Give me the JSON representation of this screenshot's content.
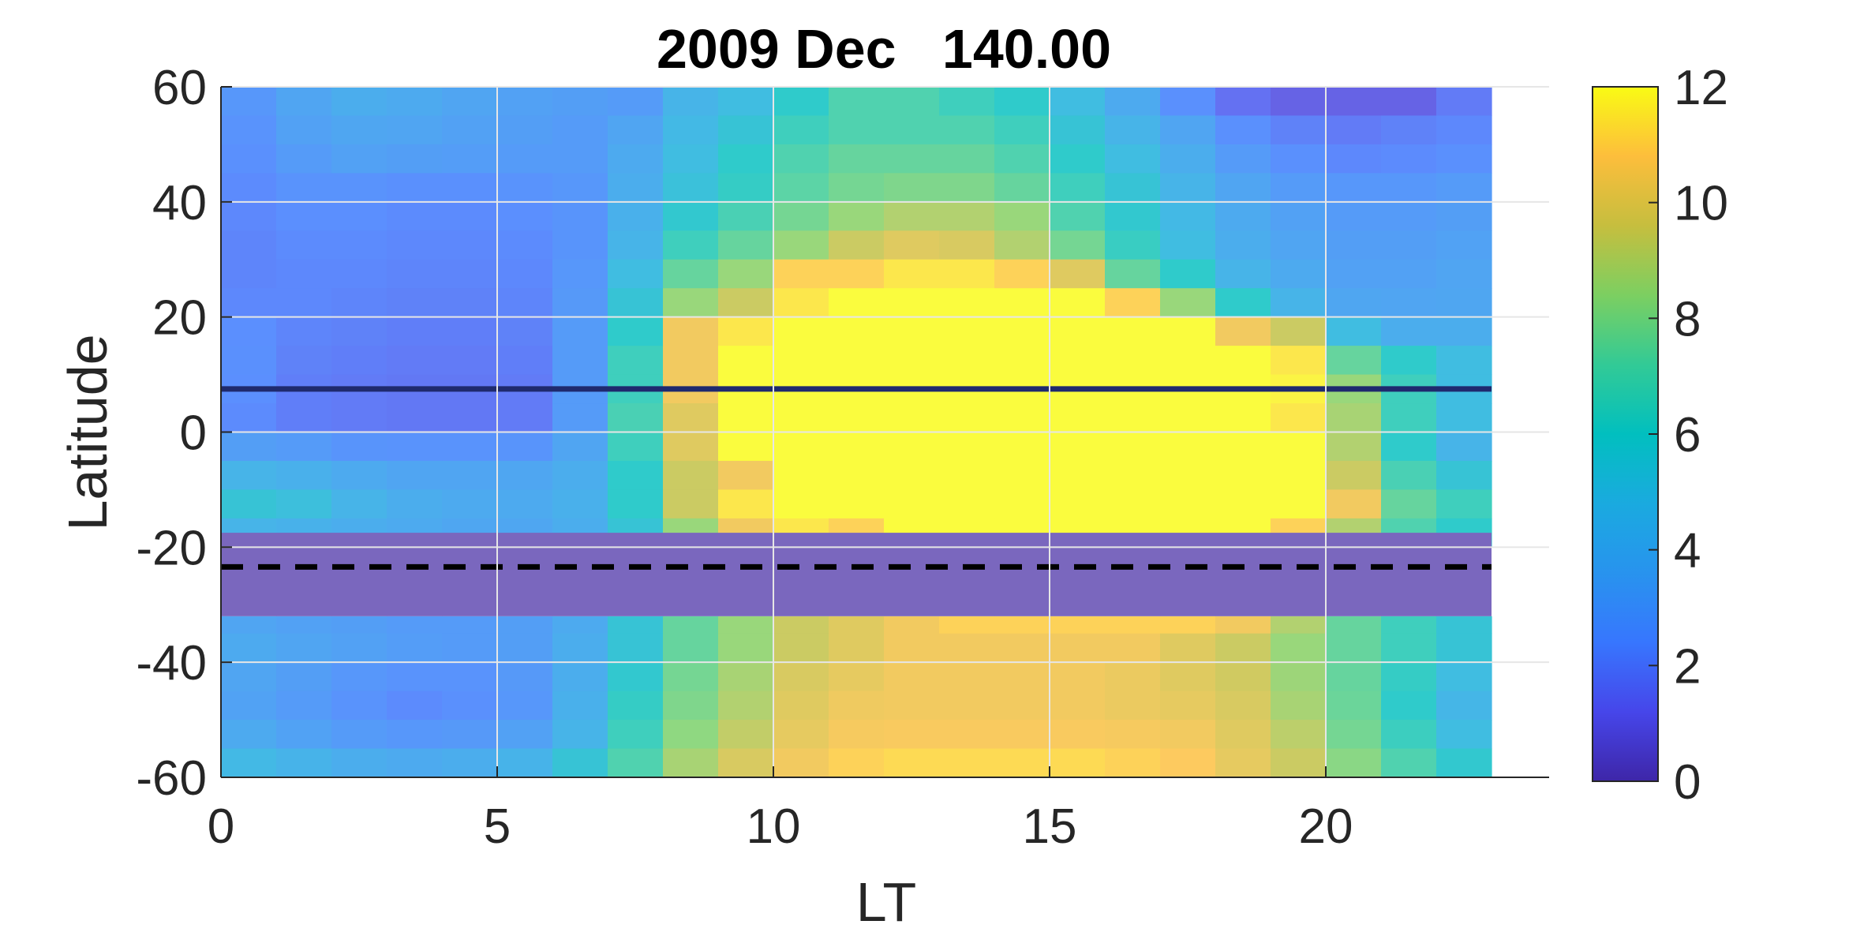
{
  "chart_data": {
    "type": "heatmap",
    "title": "2009 Dec   140.00",
    "xlabel": "LT",
    "ylabel": "Latitude",
    "xlim": [
      0,
      24
    ],
    "ylim": [
      -60,
      60
    ],
    "x_ticks": [
      "0",
      "5",
      "10",
      "15",
      "20"
    ],
    "y_ticks": [
      "-60",
      "-40",
      "-20",
      "0",
      "20",
      "40",
      "60"
    ],
    "colorbar": {
      "range": [
        0,
        12
      ],
      "ticks": [
        "0",
        "2",
        "4",
        "6",
        "8",
        "10",
        "12"
      ],
      "colormap": "parula"
    },
    "grid": true,
    "x_centers": [
      0.5,
      1.5,
      2.5,
      3.5,
      4.5,
      5.5,
      6.5,
      7.5,
      8.5,
      9.5,
      10.5,
      11.5,
      12.5,
      13.5,
      14.5,
      15.5,
      16.5,
      17.5,
      18.5,
      19.5,
      20.5,
      21.5,
      22.5
    ],
    "lat_bins": [
      [
        55,
        60
      ],
      [
        50,
        55
      ],
      [
        45,
        50
      ],
      [
        40,
        45
      ],
      [
        35,
        40
      ],
      [
        30,
        35
      ],
      [
        25,
        30
      ],
      [
        20,
        25
      ],
      [
        15,
        20
      ],
      [
        10,
        15
      ],
      [
        5,
        10
      ],
      [
        0,
        5
      ],
      [
        -5,
        0
      ],
      [
        -10,
        -5
      ],
      [
        -15,
        -10
      ],
      [
        -20,
        -15
      ],
      [
        -35,
        -32
      ],
      [
        -40,
        -35
      ],
      [
        -45,
        -40
      ],
      [
        -50,
        -45
      ],
      [
        -55,
        -50
      ],
      [
        -60,
        -55
      ]
    ],
    "values": [
      [
        2.8,
        3.5,
        4.0,
        3.8,
        3.5,
        3.3,
        3.2,
        3.0,
        4.5,
        5.0,
        6.0,
        7.0,
        7.0,
        6.5,
        6.0,
        5.0,
        3.8,
        2.5,
        1.5,
        1.0,
        1.0,
        1.0,
        1.8
      ],
      [
        2.6,
        3.3,
        3.6,
        3.5,
        3.3,
        3.2,
        3.0,
        3.5,
        4.8,
        5.5,
        6.5,
        7.0,
        7.0,
        7.0,
        6.5,
        5.5,
        4.5,
        3.5,
        2.5,
        2.0,
        1.8,
        2.0,
        2.2
      ],
      [
        2.5,
        3.0,
        3.3,
        3.2,
        3.1,
        3.0,
        3.0,
        3.8,
        5.0,
        6.0,
        7.0,
        7.5,
        7.5,
        7.5,
        7.0,
        6.0,
        5.0,
        4.0,
        3.0,
        2.5,
        2.2,
        2.3,
        2.5
      ],
      [
        2.3,
        2.6,
        2.6,
        2.5,
        2.5,
        2.6,
        2.8,
        4.0,
        5.3,
        6.2,
        7.3,
        7.8,
        8.0,
        8.0,
        7.5,
        6.5,
        5.5,
        4.5,
        3.5,
        3.0,
        2.8,
        2.8,
        3.0
      ],
      [
        2.2,
        2.4,
        2.4,
        2.3,
        2.3,
        2.4,
        2.7,
        4.2,
        5.8,
        6.8,
        7.8,
        8.5,
        9.0,
        9.0,
        8.5,
        7.0,
        5.8,
        4.8,
        3.8,
        3.3,
        3.0,
        3.0,
        3.2
      ],
      [
        2.1,
        2.3,
        2.3,
        2.2,
        2.2,
        2.3,
        2.7,
        4.5,
        6.5,
        7.5,
        8.5,
        9.5,
        10.0,
        9.8,
        9.0,
        7.8,
        6.3,
        5.0,
        4.0,
        3.5,
        3.2,
        3.2,
        3.4
      ],
      [
        2.1,
        2.2,
        2.2,
        2.1,
        2.1,
        2.2,
        2.8,
        5.0,
        7.5,
        8.5,
        11.0,
        11.0,
        11.5,
        11.5,
        11.0,
        10.0,
        7.5,
        6.0,
        4.5,
        3.8,
        3.3,
        3.3,
        3.5
      ],
      [
        2.2,
        2.2,
        2.1,
        2.0,
        2.0,
        2.1,
        2.9,
        5.5,
        8.5,
        9.5,
        11.5,
        12.0,
        12.0,
        12.0,
        12.0,
        12.0,
        11.0,
        8.5,
        6.0,
        4.5,
        3.6,
        3.5,
        3.6
      ],
      [
        2.4,
        2.1,
        2.0,
        1.9,
        1.9,
        2.0,
        3.0,
        6.0,
        10.5,
        11.5,
        12.0,
        12.0,
        12.0,
        12.0,
        12.0,
        12.0,
        12.0,
        12.0,
        10.5,
        9.5,
        5.0,
        4.0,
        4.0
      ],
      [
        2.5,
        2.0,
        1.9,
        1.8,
        1.8,
        1.9,
        3.0,
        6.5,
        10.5,
        12.0,
        12.0,
        12.0,
        12.0,
        12.0,
        12.0,
        12.0,
        12.0,
        12.0,
        12.0,
        11.5,
        7.5,
        6.0,
        5.0
      ],
      [
        2.4,
        1.9,
        1.8,
        1.7,
        1.7,
        1.8,
        3.0,
        6.5,
        10.5,
        12.0,
        12.0,
        12.0,
        12.0,
        12.0,
        12.0,
        12.0,
        12.0,
        12.0,
        12.0,
        11.8,
        8.5,
        6.5,
        5.0
      ],
      [
        2.3,
        1.9,
        1.8,
        1.7,
        1.7,
        1.8,
        3.0,
        6.8,
        10.0,
        12.0,
        12.0,
        12.0,
        12.0,
        12.0,
        12.0,
        12.0,
        12.0,
        12.0,
        12.0,
        11.5,
        8.8,
        6.5,
        5.0
      ],
      [
        3.2,
        3.0,
        2.7,
        2.6,
        2.6,
        2.7,
        3.5,
        6.5,
        10.0,
        12.0,
        12.0,
        12.0,
        12.0,
        12.0,
        12.0,
        12.0,
        12.0,
        12.0,
        12.0,
        12.0,
        9.0,
        6.0,
        4.5
      ],
      [
        4.5,
        4.2,
        3.8,
        3.5,
        3.5,
        3.6,
        4.0,
        6.0,
        9.5,
        10.5,
        12.0,
        12.0,
        12.0,
        12.0,
        12.0,
        12.0,
        12.0,
        12.0,
        12.0,
        12.0,
        9.5,
        6.8,
        5.5
      ],
      [
        5.5,
        5.2,
        4.5,
        4.0,
        3.8,
        3.8,
        4.2,
        6.0,
        9.5,
        11.5,
        12.0,
        12.0,
        12.0,
        12.0,
        12.0,
        12.0,
        12.0,
        12.0,
        12.0,
        12.0,
        10.5,
        7.5,
        6.5
      ],
      [
        4.5,
        4.3,
        4.0,
        3.8,
        3.6,
        3.6,
        4.0,
        5.5,
        8.5,
        10.5,
        11.5,
        11.0,
        12.0,
        12.0,
        12.0,
        12.0,
        12.0,
        12.0,
        12.0,
        11.0,
        9.0,
        7.0,
        6.0
      ],
      [
        3.5,
        3.3,
        3.2,
        3.0,
        3.0,
        3.2,
        3.8,
        5.5,
        7.5,
        8.5,
        9.5,
        10.0,
        10.5,
        11.0,
        11.0,
        11.0,
        11.0,
        11.0,
        10.5,
        9.0,
        7.5,
        6.5,
        5.5
      ],
      [
        3.8,
        3.5,
        3.3,
        3.1,
        3.0,
        3.2,
        4.0,
        5.5,
        7.5,
        8.5,
        9.5,
        10.0,
        10.5,
        10.5,
        10.5,
        10.5,
        10.5,
        10.0,
        9.5,
        8.5,
        7.5,
        6.5,
        5.5
      ],
      [
        3.5,
        3.2,
        2.8,
        2.6,
        2.6,
        2.9,
        4.0,
        5.8,
        7.8,
        8.8,
        9.8,
        10.2,
        10.5,
        10.5,
        10.5,
        10.5,
        10.3,
        10.0,
        9.6,
        8.6,
        7.5,
        6.2,
        5.0
      ],
      [
        3.4,
        3.0,
        2.6,
        2.3,
        2.5,
        2.8,
        4.2,
        6.2,
        8.0,
        9.0,
        10.0,
        10.4,
        10.5,
        10.5,
        10.5,
        10.5,
        10.3,
        10.2,
        9.8,
        8.8,
        7.6,
        6.0,
        4.6
      ],
      [
        3.8,
        3.4,
        3.0,
        2.8,
        2.9,
        3.3,
        4.5,
        6.5,
        8.3,
        9.3,
        10.2,
        10.6,
        10.7,
        10.7,
        10.7,
        10.7,
        10.6,
        10.5,
        10.0,
        9.2,
        7.8,
        6.4,
        5.0
      ],
      [
        4.8,
        4.4,
        4.0,
        3.8,
        4.0,
        4.4,
        5.5,
        7.0,
        8.8,
        9.8,
        10.5,
        11.0,
        11.2,
        11.2,
        11.2,
        11.2,
        11.0,
        10.8,
        10.2,
        9.5,
        8.2,
        7.0,
        5.8
      ]
    ],
    "masked_band": {
      "lat_range": [
        -32,
        -17.5
      ],
      "color": "#7a67be"
    },
    "reference_lines": [
      {
        "lat": 7.5,
        "style": "solid",
        "color": "#1f2a6e"
      },
      {
        "lat": -23.44,
        "style": "dashed",
        "color": "#000000"
      }
    ]
  }
}
